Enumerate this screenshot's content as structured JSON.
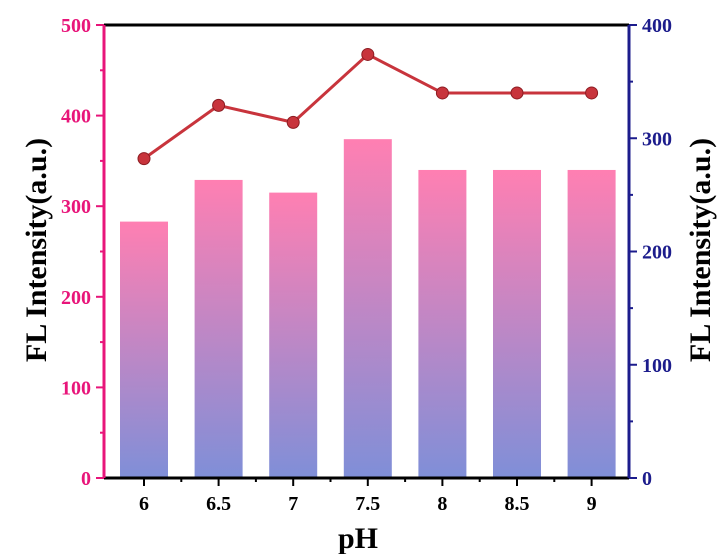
{
  "chart_data": {
    "type": "bar",
    "categories": [
      "6",
      "6.5",
      "7",
      "7.5",
      "8",
      "8.5",
      "9"
    ],
    "xlabel": "pH",
    "ylabel": "FL Intensity(a.u.)",
    "y2label": "FL Intensity(a.u.)",
    "ylim": [
      0,
      500
    ],
    "y2lim": [
      0,
      400
    ],
    "yticks": [
      "0",
      "100",
      "200",
      "300",
      "400",
      "500"
    ],
    "y2ticks": [
      "0",
      "100",
      "200",
      "300",
      "400"
    ],
    "series": [
      {
        "type": "bar",
        "axis": "left",
        "values": [
          283,
          329,
          315,
          374,
          340,
          340,
          340
        ]
      },
      {
        "type": "line",
        "axis": "right",
        "values": [
          282,
          329,
          314,
          374,
          340,
          340,
          340
        ]
      }
    ],
    "colors": {
      "left_axis": "#e8157a",
      "right_axis": "#1c1c8c",
      "bar_top": "#ff7fb2",
      "bar_bottom": "#7f8fd8",
      "line": "#c8343c"
    },
    "grid": false
  }
}
